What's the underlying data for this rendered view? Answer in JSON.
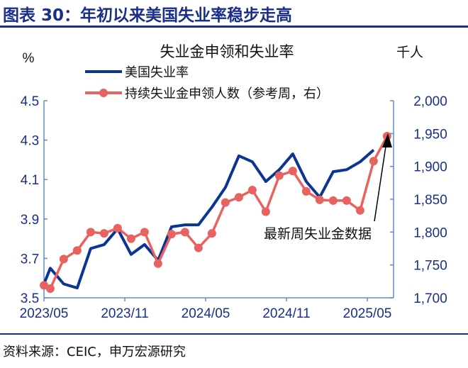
{
  "header": {
    "title": "图表 30：年初以来美国失业率稳步走高"
  },
  "footer": {
    "source": "资料来源：CEIC，申万宏源研究"
  },
  "colors": {
    "unemployment": "#0a3593",
    "claims": "#e8625f",
    "axis": "#5b8fd0",
    "text": "#1a2f8a",
    "title": "#1a2f8a"
  },
  "chart_data": {
    "type": "line",
    "title": "失业金申领和失业率",
    "ylabel_left": "%",
    "ylabel_right": "千人",
    "ylim_left": [
      3.5,
      4.5
    ],
    "ylim_right": [
      1700,
      2000
    ],
    "yticks_left": [
      "3.5",
      "3.7",
      "3.9",
      "4.1",
      "4.3",
      "4.5"
    ],
    "yticks_right": [
      "1,700",
      "1,750",
      "1,800",
      "1,850",
      "1,900",
      "1,950",
      "2,000"
    ],
    "xticks": [
      "2023/05",
      "2023/11",
      "2024/05",
      "2024/11",
      "2025/05"
    ],
    "grid": false,
    "legend_placement": "top",
    "annotation": "最新周失业金数据",
    "series": [
      {
        "name": "美国失业率",
        "axis": "left",
        "x": [
          "2023-05-01",
          "2023-05-15",
          "2023-06-15",
          "2023-07-15",
          "2023-08-15",
          "2023-09-15",
          "2023-10-15",
          "2023-11-15",
          "2023-12-15",
          "2024-01-15",
          "2024-02-15",
          "2024-03-15",
          "2024-04-15",
          "2024-05-15",
          "2024-06-15",
          "2024-07-15",
          "2024-08-15",
          "2024-09-15",
          "2024-10-15",
          "2024-11-15",
          "2024-12-15",
          "2025-01-15",
          "2025-02-15",
          "2025-03-15",
          "2025-04-15",
          "2025-05-15"
        ],
        "values": [
          3.57,
          3.65,
          3.57,
          3.55,
          3.75,
          3.77,
          3.85,
          3.72,
          3.77,
          3.69,
          3.86,
          3.87,
          3.87,
          3.96,
          4.06,
          4.22,
          4.19,
          4.09,
          4.15,
          4.23,
          4.09,
          4.01,
          4.14,
          4.15,
          4.19,
          4.25
        ]
      },
      {
        "name": "持续失业金申领人数（参考周，右）",
        "axis": "right",
        "x": [
          "2023-05-01",
          "2023-05-15",
          "2023-06-15",
          "2023-07-15",
          "2023-08-15",
          "2023-09-15",
          "2023-10-15",
          "2023-11-15",
          "2023-12-15",
          "2024-01-15",
          "2024-02-15",
          "2024-03-15",
          "2024-04-15",
          "2024-05-15",
          "2024-06-15",
          "2024-07-15",
          "2024-08-15",
          "2024-09-15",
          "2024-10-15",
          "2024-11-15",
          "2024-12-15",
          "2025-01-15",
          "2025-02-15",
          "2025-03-15",
          "2025-04-15",
          "2025-05-15",
          "2025-06-15"
        ],
        "values": [
          1719,
          1714,
          1759,
          1772,
          1800,
          1798,
          1806,
          1790,
          1800,
          1752,
          1797,
          1800,
          1776,
          1798,
          1845,
          1853,
          1864,
          1831,
          1886,
          1893,
          1862,
          1849,
          1848,
          1848,
          1833,
          1908,
          1946
        ]
      }
    ]
  }
}
